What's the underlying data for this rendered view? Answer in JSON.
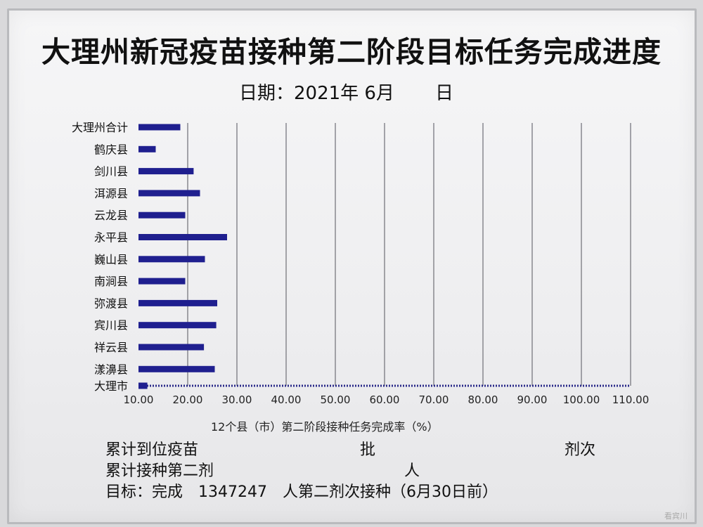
{
  "title": "大理州新冠疫苗接种第二阶段目标任务完成进度",
  "date_line": {
    "label": "日期：2021年 6月",
    "day_suffix": "日"
  },
  "chart_data": {
    "type": "bar",
    "orientation": "horizontal",
    "categories": [
      "大理州合计",
      "鹤庆县",
      "剑川县",
      "洱源县",
      "云龙县",
      "永平县",
      "巍山县",
      "南涧县",
      "弥渡县",
      "宾川县",
      "祥云县",
      "漾濞县",
      "大理市"
    ],
    "values": [
      18.5,
      13.5,
      21.2,
      22.5,
      19.5,
      28.0,
      23.5,
      19.5,
      26.0,
      25.8,
      23.3,
      25.5,
      11.8
    ],
    "xlim": [
      10,
      110
    ],
    "xticks": [
      "10.00",
      "20.00",
      "30.00",
      "40.00",
      "50.00",
      "60.00",
      "70.00",
      "80.00",
      "90.00",
      "100.00",
      "110.00"
    ],
    "xlabel": "12个县（市）第二阶段接种任务完成率（%）",
    "grid": true,
    "bar_color": "#1f1f8f"
  },
  "info_lines": {
    "line1_label": "累计到位疫苗",
    "line1_mid": "批",
    "line1_end": "剂次",
    "line2_label": "累计接种第二剂",
    "line2_mid": "人",
    "line3_label": "目标：完成",
    "line3_value": "1347247",
    "line3_rest": "人第二剂次接种（6月30日前）"
  },
  "watermark": "看宾川"
}
